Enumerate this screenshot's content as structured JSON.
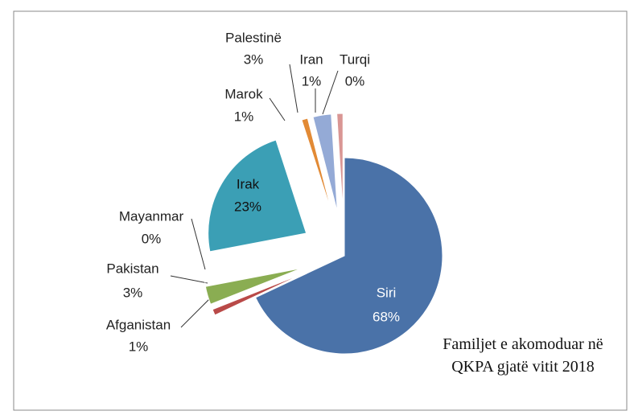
{
  "chart_data": {
    "type": "pie",
    "title": "Familjet e akomoduar në QKPA gjatë vitit 2018",
    "categories": [
      "Siri",
      "Afganistan",
      "Pakistan",
      "Mayanmar",
      "Irak",
      "Marok",
      "Palestinë",
      "Iran",
      "Turqi"
    ],
    "values": [
      68,
      1,
      3,
      0,
      23,
      1,
      3,
      1,
      0
    ],
    "value_labels": [
      "68%",
      "1%",
      "3%",
      "0%",
      "23%",
      "1%",
      "3%",
      "1%",
      "0%"
    ],
    "colors": [
      "#4a72a8",
      "#b94a48",
      "#8aad52",
      "#7c5fa0",
      "#3b9fb5",
      "#e28a35",
      "#94aad6",
      "#d99694",
      "#c3d69b"
    ]
  }
}
